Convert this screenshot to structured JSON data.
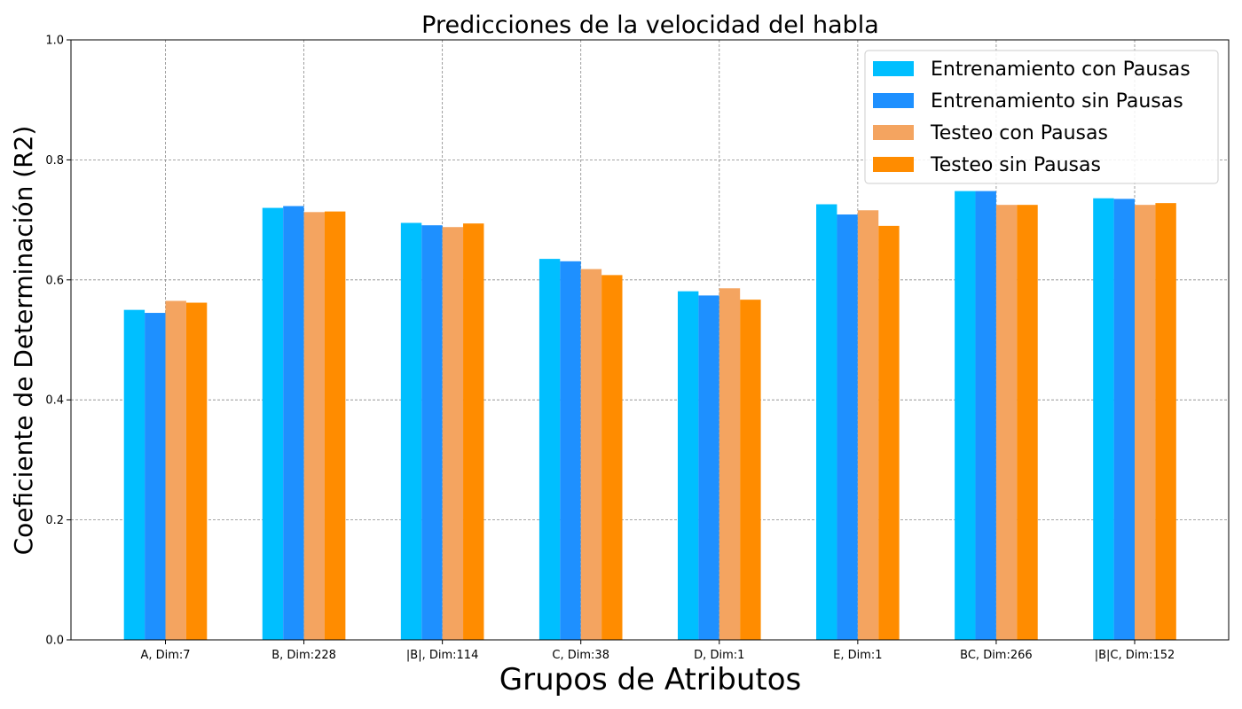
{
  "chart_data": {
    "type": "bar",
    "title": "Predicciones de la velocidad del habla",
    "xlabel": "Grupos de Atributos",
    "ylabel": "Coeficiente de Determinación (R2)",
    "ylim": [
      0,
      1.0
    ],
    "yticks": [
      "0.0",
      "0.2",
      "0.4",
      "0.6",
      "0.8",
      "1.0"
    ],
    "grid": true,
    "legend_position": "top-right",
    "categories": [
      "A, Dim:7",
      "B, Dim:228",
      "|B|, Dim:114",
      "C, Dim:38",
      "D, Dim:1",
      "E, Dim:1",
      "BC, Dim:266",
      "|B|C, Dim:152"
    ],
    "series": [
      {
        "name": "Entrenamiento con Pausas",
        "color": "#00bfff",
        "values": [
          0.55,
          0.72,
          0.695,
          0.635,
          0.581,
          0.726,
          0.748,
          0.736
        ]
      },
      {
        "name": "Entrenamiento sin Pausas",
        "color": "#1e90ff",
        "values": [
          0.545,
          0.723,
          0.691,
          0.631,
          0.574,
          0.709,
          0.748,
          0.735
        ]
      },
      {
        "name": "Testeo con Pausas",
        "color": "#f4a460",
        "values": [
          0.565,
          0.713,
          0.688,
          0.618,
          0.586,
          0.716,
          0.725,
          0.725
        ]
      },
      {
        "name": "Testeo sin Pausas",
        "color": "#ff8c00",
        "values": [
          0.562,
          0.714,
          0.694,
          0.608,
          0.567,
          0.69,
          0.725,
          0.728
        ]
      }
    ]
  }
}
